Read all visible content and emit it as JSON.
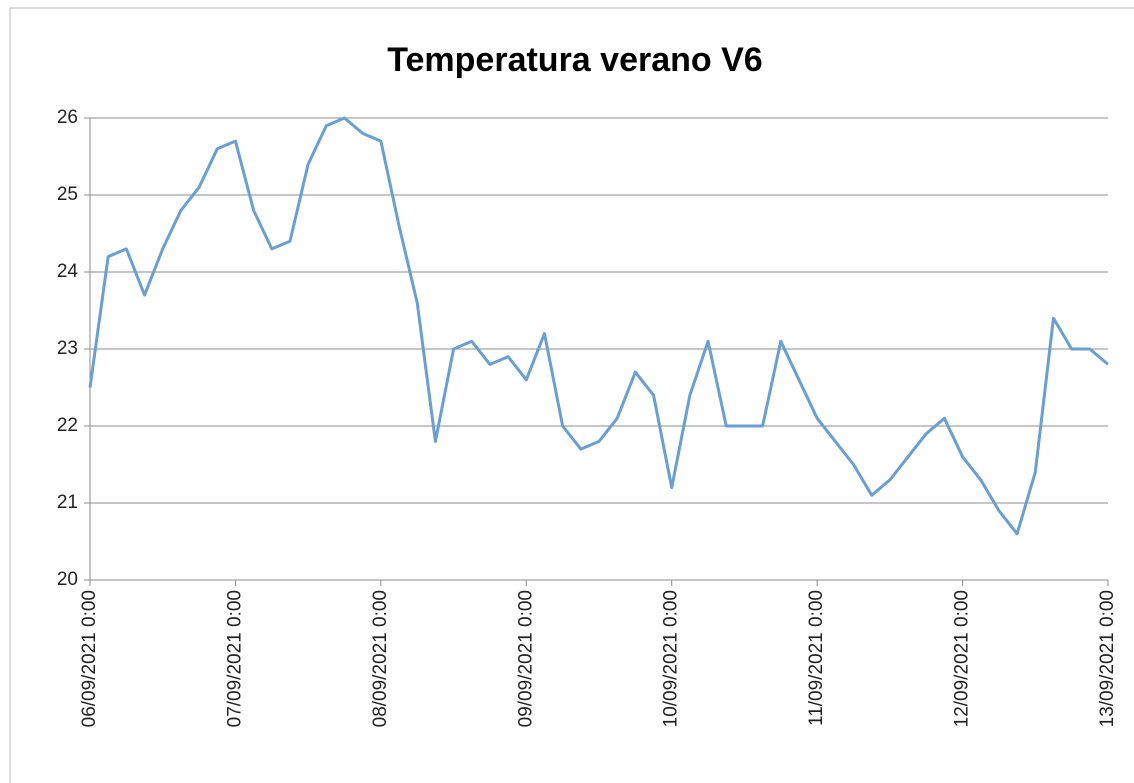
{
  "chart_data": {
    "type": "line",
    "title": "Temperatura verano V6",
    "x": [
      "06/09/2021 0:00",
      "06/09/2021 3:00",
      "06/09/2021 6:00",
      "06/09/2021 9:00",
      "06/09/2021 12:00",
      "06/09/2021 15:00",
      "06/09/2021 18:00",
      "06/09/2021 21:00",
      "07/09/2021 0:00",
      "07/09/2021 3:00",
      "07/09/2021 6:00",
      "07/09/2021 9:00",
      "07/09/2021 12:00",
      "07/09/2021 15:00",
      "07/09/2021 18:00",
      "07/09/2021 21:00",
      "08/09/2021 0:00",
      "08/09/2021 3:00",
      "08/09/2021 6:00",
      "08/09/2021 9:00",
      "08/09/2021 12:00",
      "08/09/2021 15:00",
      "08/09/2021 18:00",
      "08/09/2021 21:00",
      "09/09/2021 0:00",
      "09/09/2021 3:00",
      "09/09/2021 6:00",
      "09/09/2021 9:00",
      "09/09/2021 12:00",
      "09/09/2021 15:00",
      "09/09/2021 18:00",
      "09/09/2021 21:00",
      "10/09/2021 0:00",
      "10/09/2021 3:00",
      "10/09/2021 6:00",
      "10/09/2021 9:00",
      "10/09/2021 12:00",
      "10/09/2021 15:00",
      "10/09/2021 18:00",
      "10/09/2021 21:00",
      "11/09/2021 0:00",
      "11/09/2021 3:00",
      "11/09/2021 6:00",
      "11/09/2021 9:00",
      "11/09/2021 12:00",
      "11/09/2021 15:00",
      "11/09/2021 18:00",
      "11/09/2021 21:00",
      "12/09/2021 0:00",
      "12/09/2021 3:00",
      "12/09/2021 6:00",
      "12/09/2021 9:00",
      "12/09/2021 12:00",
      "12/09/2021 15:00",
      "12/09/2021 18:00",
      "12/09/2021 21:00",
      "13/09/2021 0:00"
    ],
    "values": [
      22.5,
      24.2,
      24.3,
      23.7,
      24.3,
      24.8,
      25.1,
      25.6,
      25.7,
      24.8,
      24.3,
      24.4,
      25.4,
      25.9,
      26.0,
      25.8,
      25.7,
      24.6,
      23.6,
      21.8,
      23.0,
      23.1,
      22.8,
      22.9,
      22.6,
      23.2,
      22.0,
      21.7,
      21.8,
      22.1,
      22.7,
      22.4,
      21.2,
      22.4,
      23.1,
      22.0,
      22.0,
      22.0,
      23.1,
      22.6,
      22.1,
      21.8,
      21.5,
      21.1,
      21.3,
      21.6,
      21.9,
      22.1,
      21.6,
      21.3,
      20.9,
      20.6,
      21.4,
      23.4,
      23.0,
      23.0,
      22.8
    ],
    "color": "#6a9fd0",
    "xlim": [
      "06/09/2021 0:00",
      "13/09/2021 0:00"
    ],
    "xticks": [
      "06/09/2021 0:00",
      "07/09/2021 0:00",
      "08/09/2021 0:00",
      "09/09/2021 0:00",
      "10/09/2021 0:00",
      "11/09/2021 0:00",
      "12/09/2021 0:00",
      "13/09/2021 0:00"
    ],
    "ylim": [
      20,
      26
    ],
    "yticks": [
      20,
      21,
      22,
      23,
      24,
      25,
      26
    ],
    "grid": true
  }
}
